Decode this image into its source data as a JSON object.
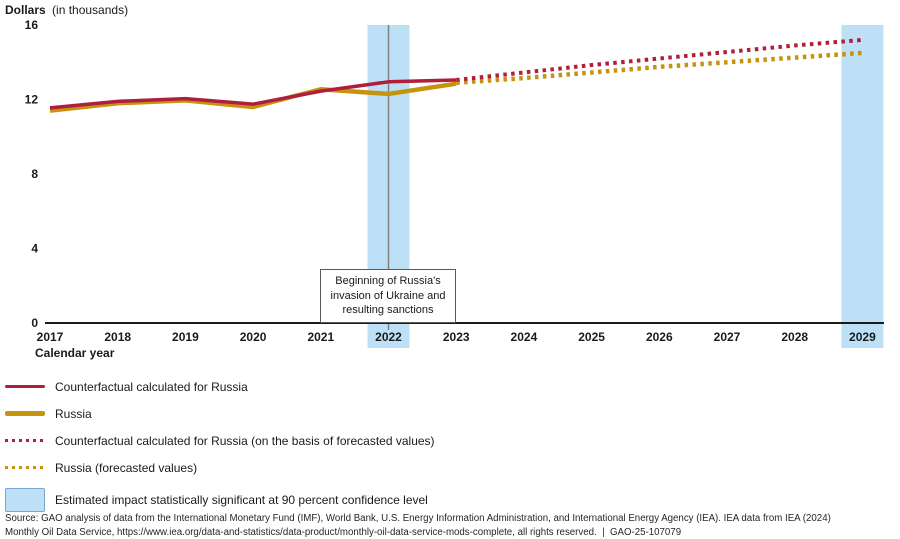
{
  "figure": {
    "y_axis_title_bold": "Dollars",
    "y_axis_title_unit": "(in thousands)"
  },
  "chart_data": {
    "type": "line",
    "title": "Dollars (in thousands)",
    "xlabel": "Calendar year",
    "ylabel": "Dollars (in thousands)",
    "x_ticks": [
      2017,
      2018,
      2019,
      2020,
      2021,
      2022,
      2023,
      2024,
      2025,
      2026,
      2027,
      2028,
      2029
    ],
    "y_ticks": [
      0,
      4,
      8,
      12,
      16
    ],
    "ylim": [
      0,
      16
    ],
    "xlim": [
      2016.9,
      2029.5
    ],
    "grid": false,
    "legend_position": "below-left",
    "series": [
      {
        "name": "Counterfactual calculated for Russia",
        "style": "solid",
        "color": "#B01E3C",
        "width": 3.5,
        "points": [
          [
            2017,
            11.55
          ],
          [
            2018,
            11.9
          ],
          [
            2019,
            12.05
          ],
          [
            2020,
            11.75
          ],
          [
            2021,
            12.45
          ],
          [
            2022,
            12.95
          ],
          [
            2023,
            13.05
          ]
        ]
      },
      {
        "name": "Russia",
        "style": "solid",
        "color": "#C6930E",
        "width": 4.5,
        "points": [
          [
            2017,
            11.4
          ],
          [
            2018,
            11.8
          ],
          [
            2019,
            11.95
          ],
          [
            2020,
            11.6
          ],
          [
            2021,
            12.55
          ],
          [
            2022,
            12.3
          ],
          [
            2023,
            12.85
          ]
        ]
      },
      {
        "name": "Counterfactual calculated for Russia (on the basis of forecasted values)",
        "style": "dotted",
        "color": "#B01E3C",
        "width": 4,
        "points": [
          [
            2023,
            13.05
          ],
          [
            2024,
            13.45
          ],
          [
            2025,
            13.85
          ],
          [
            2026,
            14.2
          ],
          [
            2027,
            14.55
          ],
          [
            2028,
            14.9
          ],
          [
            2029,
            15.2
          ]
        ]
      },
      {
        "name": "Russia (forecasted values)",
        "style": "dotted",
        "color": "#C6930E",
        "width": 4.5,
        "points": [
          [
            2023,
            12.9
          ],
          [
            2024,
            13.15
          ],
          [
            2025,
            13.45
          ],
          [
            2026,
            13.75
          ],
          [
            2027,
            14.0
          ],
          [
            2028,
            14.25
          ],
          [
            2029,
            14.5
          ]
        ]
      }
    ],
    "significant_bands": {
      "years": [
        2022,
        2029
      ],
      "fill": "#BDE0F7",
      "border": "#76A5D2"
    },
    "annotation": {
      "year": 2022,
      "line_color": "#808080",
      "lines": [
        "Beginning of Russia's",
        "invasion of Ukraine and",
        "resulting sanctions"
      ]
    }
  },
  "legend": {
    "items": [
      {
        "label": "Counterfactual calculated for Russia"
      },
      {
        "label": "Russia"
      },
      {
        "label": "Counterfactual calculated for Russia (on the basis of forecasted values)"
      },
      {
        "label": "Russia (forecasted values)"
      },
      {
        "label": "Estimated impact statistically significant at 90 percent confidence level"
      }
    ]
  },
  "source": {
    "line1": "Source: GAO analysis of data from the International Monetary Fund (IMF), World Bank, U.S. Energy Information Administration, and International Energy Agency (IEA). IEA data from IEA (2024)",
    "line2": "Monthly Oil Data Service, https://www.iea.org/data-and-statistics/data-product/monthly-oil-data-service-mods-complete, all rights reserved.  |  GAO-25-107079"
  }
}
